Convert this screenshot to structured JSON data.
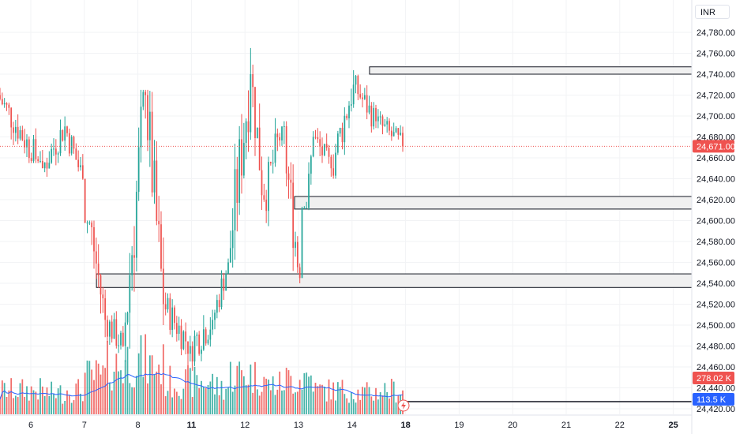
{
  "currency": "INR",
  "colors": {
    "up": "#26a69a",
    "down": "#ef5350",
    "up_volume": "#26a69a",
    "down_volume": "#ef5350",
    "ma_line": "#2962ff",
    "last_price_badge": "#ef5350",
    "volume_badge": "#ef5350",
    "ma_badge": "#2962ff",
    "zone_fill": "#f0f0f0",
    "zone_stroke": "#131722",
    "axis_text": "#131722",
    "grid": "#f2f3f5"
  },
  "chart_data": {
    "type": "candlestick",
    "y_axis": {
      "ticks": [
        "24,420.00",
        "24,440.00",
        "24,460.00",
        "24,480.00",
        "24,500.00",
        "24,520.00",
        "24,540.00",
        "24,560.00",
        "24,580.00",
        "24,600.00",
        "24,620.00",
        "24,640.00",
        "24,660.00",
        "24,680.00",
        "24,700.00",
        "24,720.00",
        "24,740.00",
        "24,760.00",
        "24,780.00"
      ],
      "range": [
        24415,
        24800
      ]
    },
    "x_axis": {
      "ticks": [
        {
          "label": "6",
          "bold": false
        },
        {
          "label": "7",
          "bold": false
        },
        {
          "label": "8",
          "bold": false
        },
        {
          "label": "11",
          "bold": true
        },
        {
          "label": "12",
          "bold": false
        },
        {
          "label": "13",
          "bold": false
        },
        {
          "label": "14",
          "bold": false
        },
        {
          "label": "18",
          "bold": true
        },
        {
          "label": "19",
          "bold": false
        },
        {
          "label": "20",
          "bold": false
        },
        {
          "label": "21",
          "bold": false
        },
        {
          "label": "22",
          "bold": false
        },
        {
          "label": "25",
          "bold": true
        }
      ]
    },
    "last_price": {
      "value": 24671,
      "label": "24,671.00"
    },
    "volume_label": "278.02 K",
    "volume_ma_label": "113.5 K",
    "zones": [
      {
        "top": 24747,
        "bottom": 24740,
        "start_day_index": 6.4
      },
      {
        "top": 24623,
        "bottom": 24611,
        "start_day_index": 5.0
      },
      {
        "top": 24549,
        "bottom": 24536,
        "start_day_index": 1.3
      },
      {
        "top": 24427,
        "bottom": 24427,
        "start_day_index": 7.0
      }
    ],
    "segments": [
      {
        "start": 24720,
        "end": 24650,
        "high": 24740,
        "low": 24655,
        "n": 20,
        "vol": 0.45
      },
      {
        "start": 24650,
        "end": 24690,
        "high": 24700,
        "low": 24620,
        "n": 10,
        "vol": 0.4
      },
      {
        "start": 24690,
        "end": 24640,
        "high": 24700,
        "low": 24615,
        "n": 8,
        "vol": 0.45
      },
      {
        "start": 24640,
        "end": 24505,
        "high": 24600,
        "low": 24470,
        "n": 10,
        "vol": 0.7
      },
      {
        "start": 24505,
        "end": 24480,
        "high": 24525,
        "low": 24445,
        "n": 8,
        "vol": 0.9
      },
      {
        "start": 24480,
        "end": 24720,
        "high": 24725,
        "low": 24460,
        "n": 10,
        "vol": 1.0
      },
      {
        "start": 24720,
        "end": 24520,
        "high": 24725,
        "low": 24500,
        "n": 8,
        "vol": 0.9
      },
      {
        "start": 24520,
        "end": 24480,
        "high": 24550,
        "low": 24460,
        "n": 12,
        "vol": 0.6
      },
      {
        "start": 24480,
        "end": 24505,
        "high": 24540,
        "low": 24440,
        "n": 10,
        "vol": 0.6
      },
      {
        "start": 24505,
        "end": 24560,
        "high": 24575,
        "low": 24495,
        "n": 7,
        "vol": 0.5
      },
      {
        "start": 24560,
        "end": 24740,
        "high": 24765,
        "low": 24555,
        "n": 10,
        "vol": 0.75
      },
      {
        "start": 24740,
        "end": 24620,
        "high": 24750,
        "low": 24590,
        "n": 6,
        "vol": 0.7
      },
      {
        "start": 24620,
        "end": 24690,
        "high": 24705,
        "low": 24590,
        "n": 8,
        "vol": 0.55
      },
      {
        "start": 24690,
        "end": 24545,
        "high": 24695,
        "low": 24540,
        "n": 8,
        "vol": 0.65
      },
      {
        "start": 24545,
        "end": 24680,
        "high": 24690,
        "low": 24610,
        "n": 6,
        "vol": 0.7
      },
      {
        "start": 24680,
        "end": 24650,
        "high": 24700,
        "low": 24630,
        "n": 8,
        "vol": 0.45
      },
      {
        "start": 24650,
        "end": 24730,
        "high": 24750,
        "low": 24640,
        "n": 10,
        "vol": 0.45
      },
      {
        "start": 24730,
        "end": 24695,
        "high": 24750,
        "low": 24680,
        "n": 10,
        "vol": 0.4
      },
      {
        "start": 24695,
        "end": 24671,
        "high": 24725,
        "low": 24658,
        "n": 12,
        "vol": 0.45
      }
    ]
  }
}
